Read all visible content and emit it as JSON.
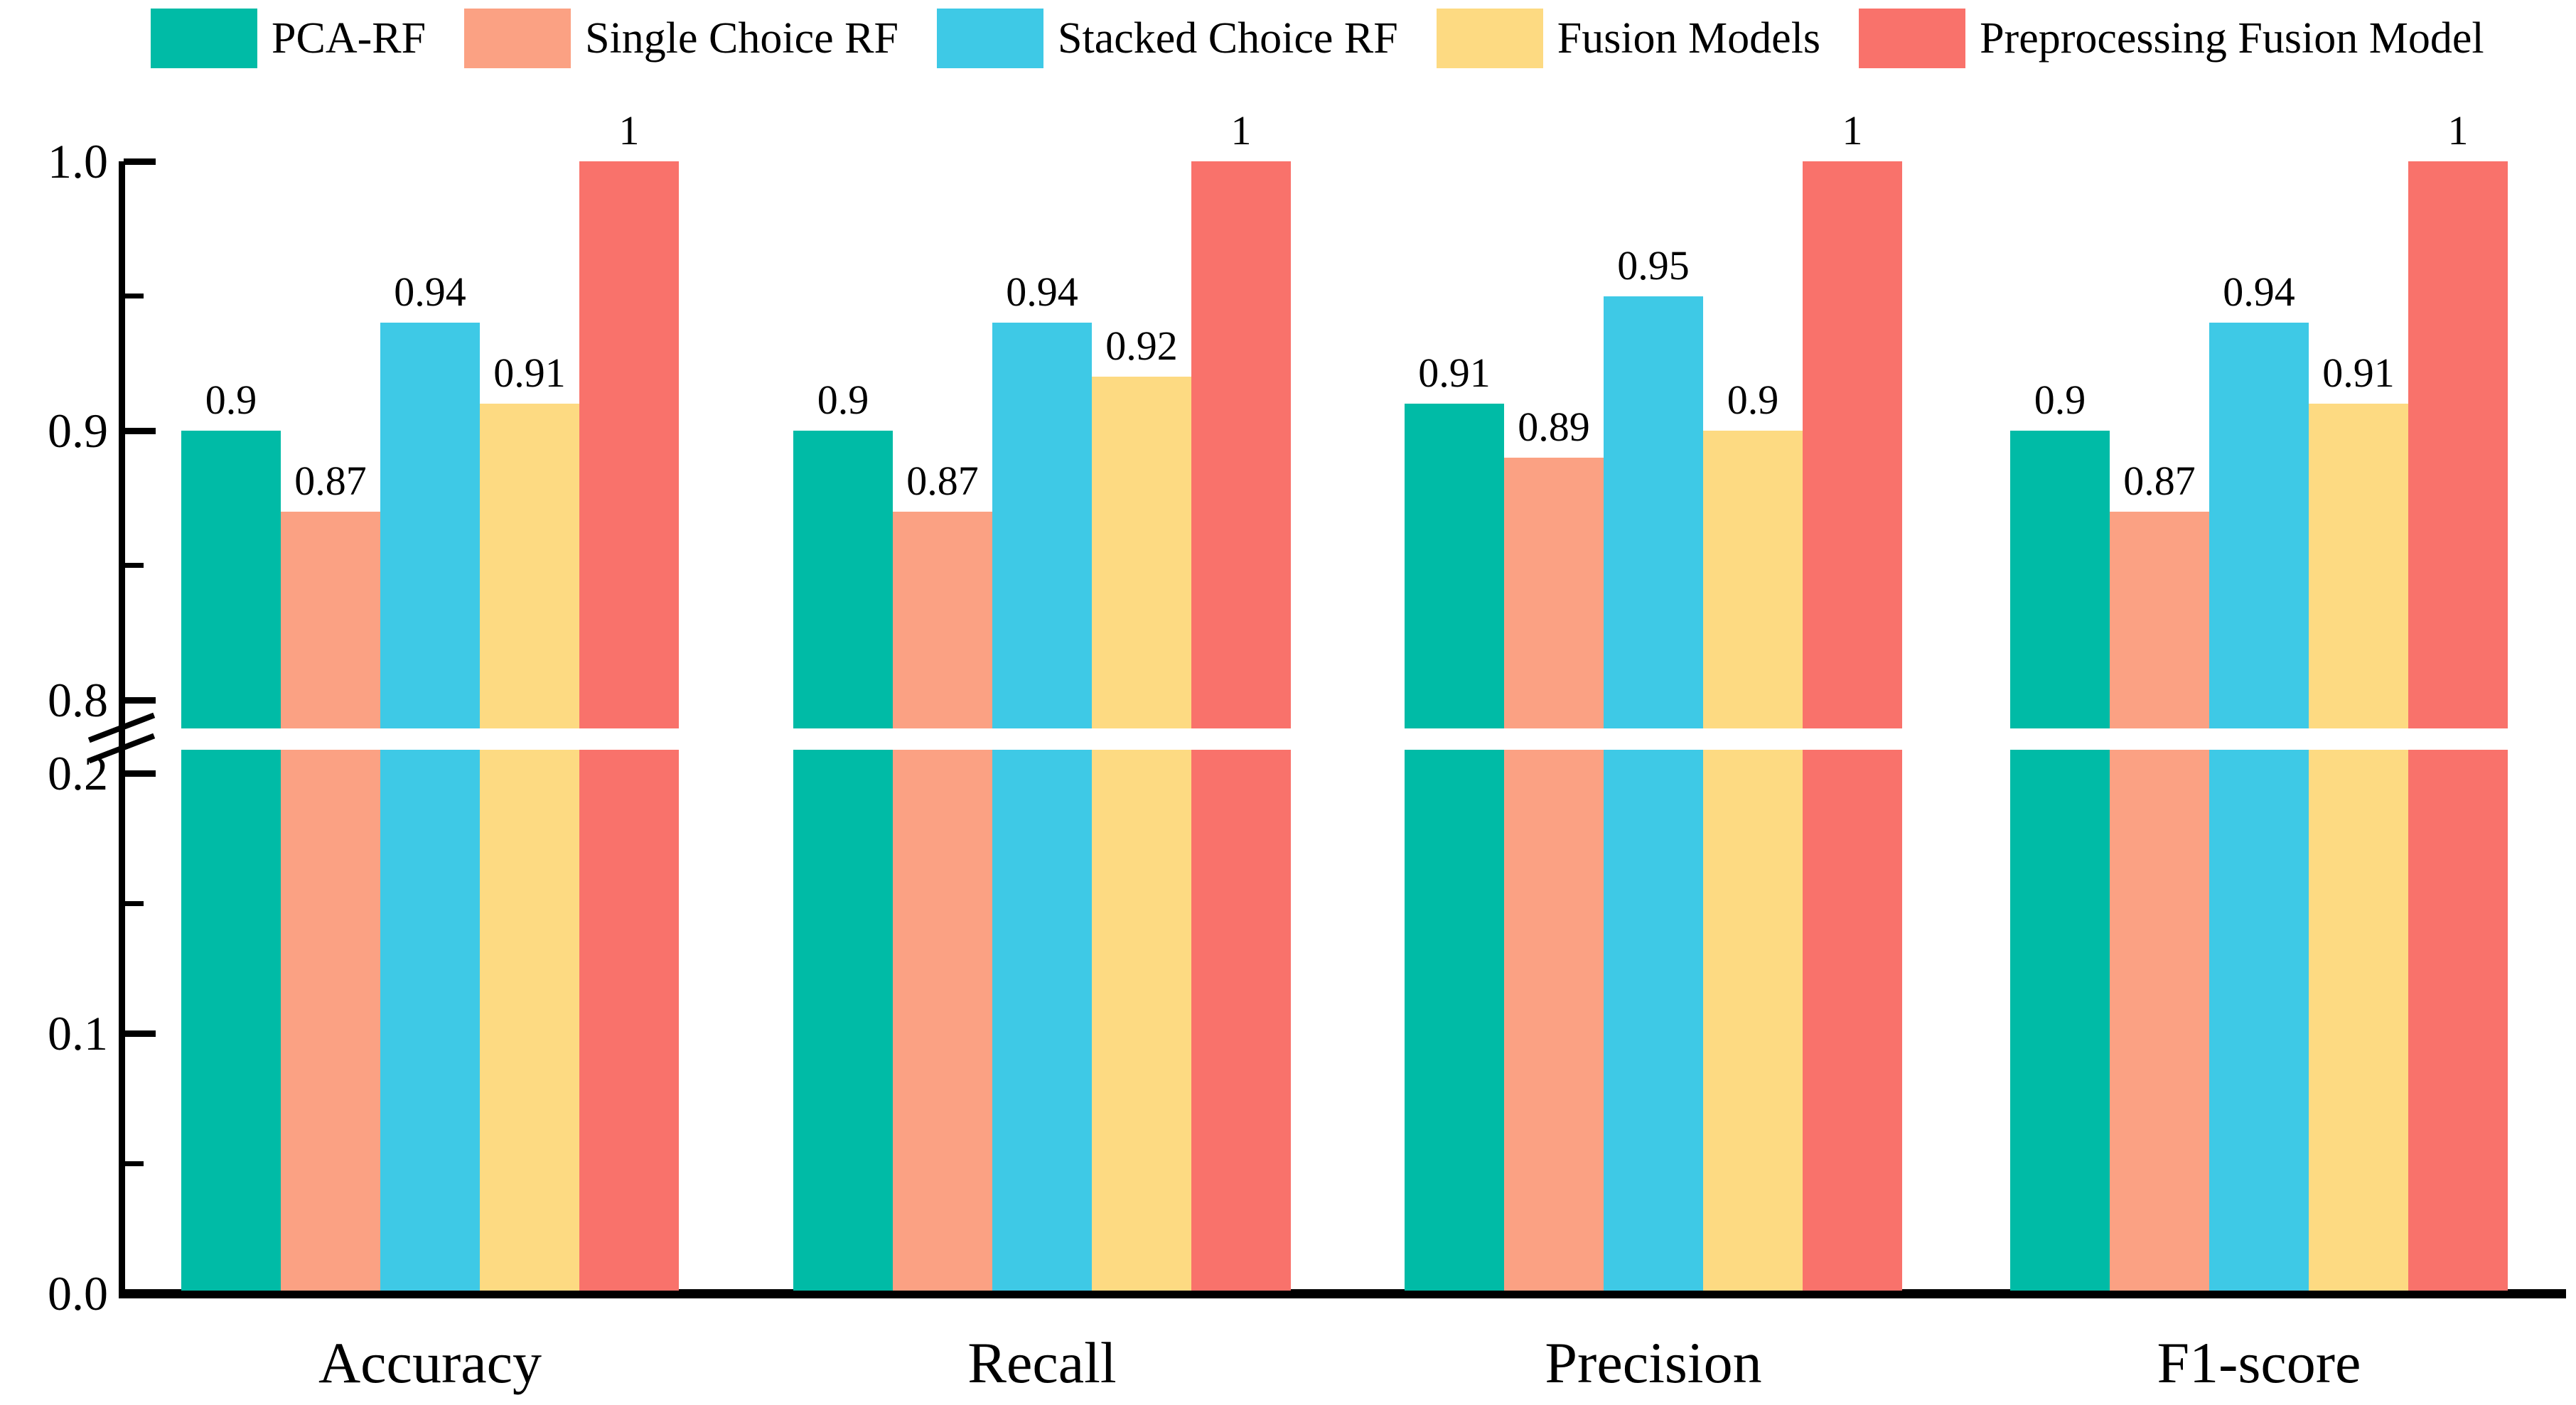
{
  "chart_data": {
    "type": "bar",
    "title": "",
    "xlabel": "",
    "ylabel": "",
    "categories": [
      "Accuracy",
      "Recall",
      "Precision",
      "F1-score"
    ],
    "series": [
      {
        "name": "PCA-RF",
        "color": "#00bba6",
        "values": [
          0.9,
          0.9,
          0.91,
          0.9
        ],
        "labels": [
          "0.9",
          "0.9",
          "0.91",
          "0.9"
        ]
      },
      {
        "name": "Single Choice RF",
        "color": "#fba183",
        "values": [
          0.87,
          0.87,
          0.89,
          0.87
        ],
        "labels": [
          "0.87",
          "0.87",
          "0.89",
          "0.87"
        ]
      },
      {
        "name": "Stacked Choice RF",
        "color": "#3ec9e6",
        "values": [
          0.94,
          0.94,
          0.95,
          0.94
        ],
        "labels": [
          "0.94",
          "0.94",
          "0.95",
          "0.94"
        ]
      },
      {
        "name": "Fusion Models",
        "color": "#fdda82",
        "values": [
          0.91,
          0.92,
          0.9,
          0.91
        ],
        "labels": [
          "0.91",
          "0.92",
          "0.9",
          "0.91"
        ]
      },
      {
        "name": "Preprocessing Fusion Model",
        "color": "#f9726b",
        "values": [
          1,
          1,
          1,
          1
        ],
        "labels": [
          "1",
          "1",
          "1",
          "1"
        ]
      }
    ],
    "y_axis": {
      "broken": true,
      "upper_range": [
        0.8,
        1.0
      ],
      "lower_range": [
        0.0,
        0.2
      ],
      "upper_ticks": [
        {
          "v": 1.0,
          "label": "1.0"
        },
        {
          "v": 0.9,
          "label": "0.9"
        },
        {
          "v": 0.8,
          "label": "0.8"
        }
      ],
      "upper_minor_ticks": [
        0.95,
        0.85
      ],
      "lower_ticks": [
        {
          "v": 0.2,
          "label": "0.2"
        },
        {
          "v": 0.1,
          "label": "0.1"
        },
        {
          "v": 0.0,
          "label": "0.0"
        }
      ],
      "lower_minor_ticks": [
        0.15,
        0.05
      ],
      "grid": false
    },
    "legend_position": "top",
    "bar_value_labels_shown": true
  },
  "colors": {
    "background": "#ffffff",
    "axis": "#000000",
    "text": "#000000"
  }
}
